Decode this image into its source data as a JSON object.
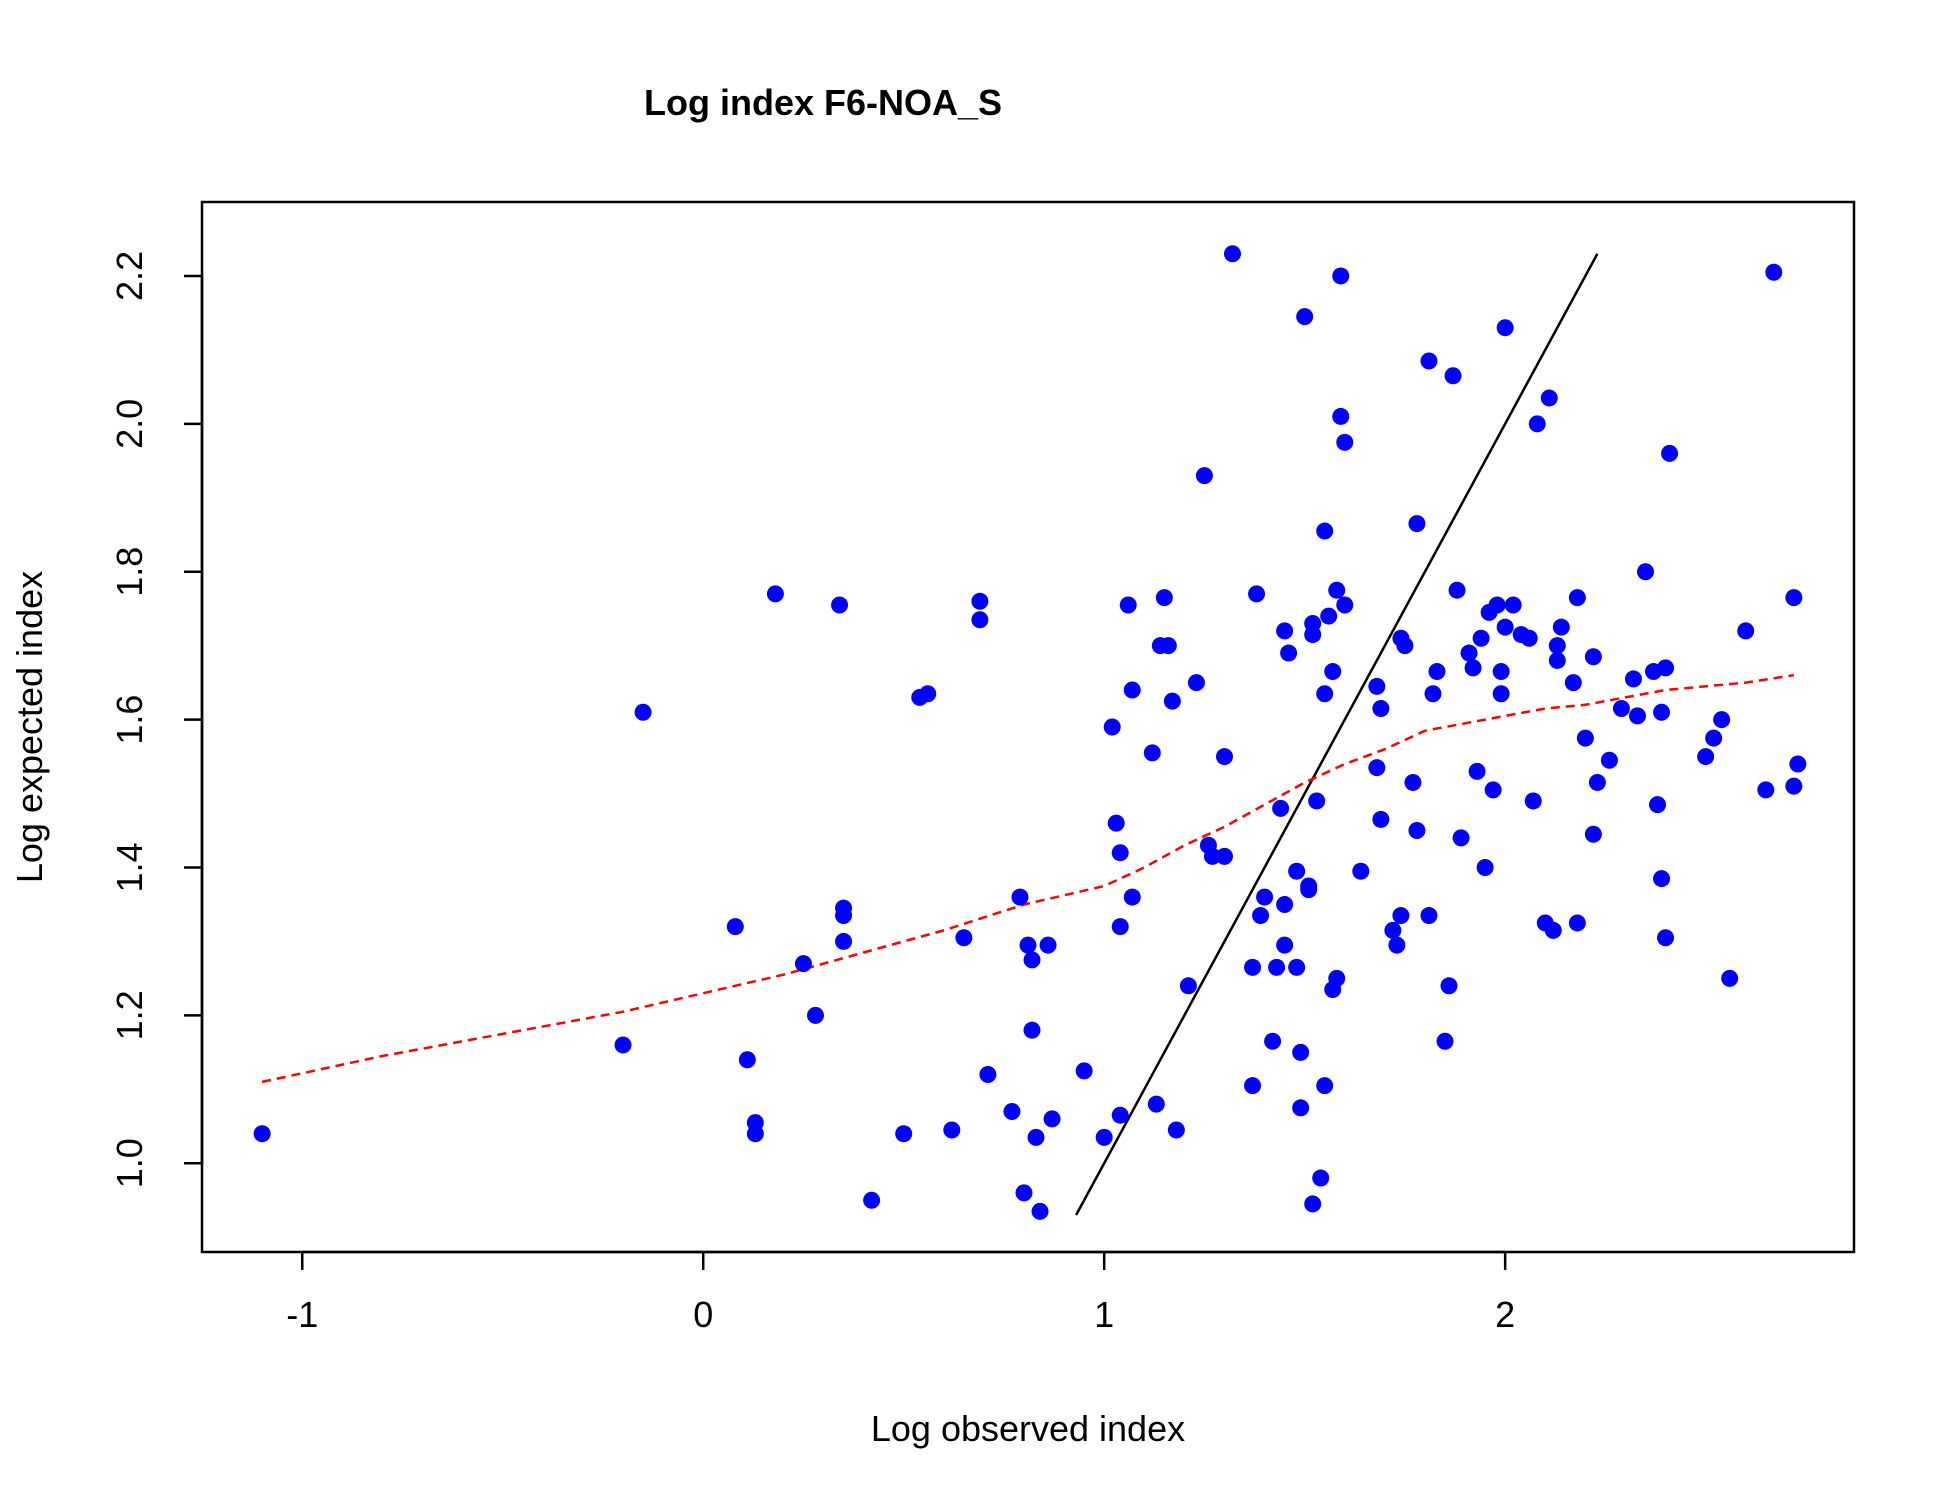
{
  "chart_data": {
    "type": "scatter",
    "title": "Log index F6-NOA_S",
    "xlabel": "Log observed index",
    "ylabel": "Log expected index",
    "xlim": [
      -1.25,
      2.87
    ],
    "ylim": [
      0.88,
      2.3
    ],
    "x_ticks": [
      -1,
      0,
      1,
      2
    ],
    "y_ticks": [
      1.0,
      1.2,
      1.4,
      1.6,
      1.8,
      2.0,
      2.2
    ],
    "x_tick_labels": [
      "-1",
      "0",
      "1",
      "2"
    ],
    "y_tick_labels": [
      "1.0",
      "1.2",
      "1.4",
      "1.6",
      "1.8",
      "2.0",
      "2.2"
    ],
    "grid": false,
    "legend": "none",
    "colors": {
      "points": "#0000ff",
      "smoother": "#ff0000",
      "identity_line": "#000000"
    },
    "points": [
      [
        -1.1,
        1.04
      ],
      [
        -0.2,
        1.16
      ],
      [
        -0.15,
        1.61
      ],
      [
        0.08,
        1.32
      ],
      [
        0.11,
        1.14
      ],
      [
        0.13,
        1.055
      ],
      [
        0.13,
        1.04
      ],
      [
        0.18,
        1.77
      ],
      [
        0.25,
        1.27
      ],
      [
        0.28,
        1.2
      ],
      [
        0.34,
        1.755
      ],
      [
        0.35,
        1.3
      ],
      [
        0.35,
        1.345
      ],
      [
        0.35,
        1.335
      ],
      [
        0.42,
        0.95
      ],
      [
        0.5,
        1.04
      ],
      [
        0.54,
        1.63
      ],
      [
        0.56,
        1.635
      ],
      [
        0.62,
        1.045
      ],
      [
        0.65,
        1.305
      ],
      [
        0.69,
        1.76
      ],
      [
        0.69,
        1.735
      ],
      [
        0.71,
        1.12
      ],
      [
        0.77,
        1.07
      ],
      [
        0.79,
        1.36
      ],
      [
        0.8,
        0.96
      ],
      [
        0.81,
        1.295
      ],
      [
        0.82,
        1.18
      ],
      [
        0.82,
        1.275
      ],
      [
        0.83,
        1.035
      ],
      [
        0.84,
        0.935
      ],
      [
        0.86,
        1.295
      ],
      [
        0.87,
        1.06
      ],
      [
        0.95,
        1.125
      ],
      [
        1.0,
        1.035
      ],
      [
        1.02,
        1.59
      ],
      [
        1.03,
        1.46
      ],
      [
        1.04,
        1.32
      ],
      [
        1.04,
        1.065
      ],
      [
        1.04,
        1.42
      ],
      [
        1.06,
        1.755
      ],
      [
        1.07,
        1.64
      ],
      [
        1.07,
        1.36
      ],
      [
        1.12,
        1.555
      ],
      [
        1.13,
        1.08
      ],
      [
        1.14,
        1.7
      ],
      [
        1.15,
        1.765
      ],
      [
        1.16,
        1.7
      ],
      [
        1.17,
        1.625
      ],
      [
        1.18,
        1.045
      ],
      [
        1.21,
        1.24
      ],
      [
        1.23,
        1.65
      ],
      [
        1.25,
        1.93
      ],
      [
        1.26,
        1.43
      ],
      [
        1.27,
        1.415
      ],
      [
        1.3,
        1.415
      ],
      [
        1.3,
        1.55
      ],
      [
        1.32,
        2.23
      ],
      [
        1.37,
        1.105
      ],
      [
        1.37,
        1.265
      ],
      [
        1.38,
        1.77
      ],
      [
        1.39,
        1.335
      ],
      [
        1.4,
        1.36
      ],
      [
        1.42,
        1.165
      ],
      [
        1.43,
        1.265
      ],
      [
        1.44,
        1.48
      ],
      [
        1.45,
        1.72
      ],
      [
        1.45,
        1.295
      ],
      [
        1.45,
        1.35
      ],
      [
        1.46,
        1.69
      ],
      [
        1.48,
        1.395
      ],
      [
        1.48,
        1.265
      ],
      [
        1.49,
        1.075
      ],
      [
        1.49,
        1.15
      ],
      [
        1.5,
        2.145
      ],
      [
        1.51,
        1.37
      ],
      [
        1.51,
        1.375
      ],
      [
        1.52,
        1.715
      ],
      [
        1.52,
        1.73
      ],
      [
        1.52,
        0.945
      ],
      [
        1.53,
        1.49
      ],
      [
        1.54,
        0.98
      ],
      [
        1.55,
        1.635
      ],
      [
        1.55,
        1.855
      ],
      [
        1.55,
        1.105
      ],
      [
        1.56,
        1.74
      ],
      [
        1.57,
        1.665
      ],
      [
        1.57,
        1.235
      ],
      [
        1.58,
        1.775
      ],
      [
        1.58,
        1.25
      ],
      [
        1.59,
        2.2
      ],
      [
        1.59,
        2.01
      ],
      [
        1.6,
        1.975
      ],
      [
        1.6,
        1.755
      ],
      [
        1.64,
        1.395
      ],
      [
        1.68,
        1.535
      ],
      [
        1.68,
        1.645
      ],
      [
        1.69,
        1.615
      ],
      [
        1.69,
        1.465
      ],
      [
        1.72,
        1.315
      ],
      [
        1.73,
        1.295
      ],
      [
        1.74,
        1.71
      ],
      [
        1.74,
        1.335
      ],
      [
        1.75,
        1.7
      ],
      [
        1.77,
        1.515
      ],
      [
        1.78,
        1.45
      ],
      [
        1.78,
        1.865
      ],
      [
        1.81,
        2.085
      ],
      [
        1.81,
        1.335
      ],
      [
        1.82,
        1.635
      ],
      [
        1.83,
        1.665
      ],
      [
        1.85,
        1.165
      ],
      [
        1.86,
        1.24
      ],
      [
        1.87,
        2.065
      ],
      [
        1.88,
        1.775
      ],
      [
        1.89,
        1.44
      ],
      [
        1.91,
        1.69
      ],
      [
        1.92,
        1.67
      ],
      [
        1.93,
        1.53
      ],
      [
        1.94,
        1.71
      ],
      [
        1.95,
        1.4
      ],
      [
        1.96,
        1.745
      ],
      [
        1.97,
        1.505
      ],
      [
        1.98,
        1.755
      ],
      [
        1.99,
        1.665
      ],
      [
        1.99,
        1.635
      ],
      [
        2.0,
        2.13
      ],
      [
        2.0,
        1.725
      ],
      [
        2.02,
        1.755
      ],
      [
        2.04,
        1.715
      ],
      [
        2.06,
        1.71
      ],
      [
        2.07,
        1.49
      ],
      [
        2.08,
        2.0
      ],
      [
        2.1,
        1.325
      ],
      [
        2.11,
        2.035
      ],
      [
        2.12,
        1.315
      ],
      [
        2.13,
        1.68
      ],
      [
        2.13,
        1.7
      ],
      [
        2.14,
        1.725
      ],
      [
        2.17,
        1.65
      ],
      [
        2.18,
        1.325
      ],
      [
        2.18,
        1.765
      ],
      [
        2.2,
        1.575
      ],
      [
        2.22,
        1.685
      ],
      [
        2.22,
        1.445
      ],
      [
        2.23,
        1.515
      ],
      [
        2.26,
        1.545
      ],
      [
        2.29,
        1.615
      ],
      [
        2.32,
        1.655
      ],
      [
        2.33,
        1.605
      ],
      [
        2.35,
        1.8
      ],
      [
        2.37,
        1.665
      ],
      [
        2.38,
        1.485
      ],
      [
        2.39,
        1.61
      ],
      [
        2.39,
        1.385
      ],
      [
        2.4,
        1.305
      ],
      [
        2.4,
        1.67
      ],
      [
        2.41,
        1.96
      ],
      [
        2.5,
        1.55
      ],
      [
        2.52,
        1.575
      ],
      [
        2.54,
        1.6
      ],
      [
        2.56,
        1.25
      ],
      [
        2.6,
        1.72
      ],
      [
        2.65,
        1.505
      ],
      [
        2.67,
        2.205
      ],
      [
        2.72,
        1.765
      ],
      [
        2.72,
        1.51
      ],
      [
        2.73,
        1.54
      ]
    ],
    "smoother": [
      [
        -1.1,
        1.11
      ],
      [
        -0.8,
        1.145
      ],
      [
        -0.5,
        1.175
      ],
      [
        -0.2,
        1.205
      ],
      [
        0.0,
        1.23
      ],
      [
        0.2,
        1.255
      ],
      [
        0.4,
        1.285
      ],
      [
        0.6,
        1.315
      ],
      [
        0.8,
        1.35
      ],
      [
        1.0,
        1.375
      ],
      [
        1.1,
        1.4
      ],
      [
        1.2,
        1.43
      ],
      [
        1.3,
        1.455
      ],
      [
        1.4,
        1.485
      ],
      [
        1.5,
        1.515
      ],
      [
        1.6,
        1.54
      ],
      [
        1.7,
        1.56
      ],
      [
        1.8,
        1.585
      ],
      [
        1.9,
        1.595
      ],
      [
        2.0,
        1.605
      ],
      [
        2.1,
        1.615
      ],
      [
        2.2,
        1.62
      ],
      [
        2.3,
        1.63
      ],
      [
        2.4,
        1.64
      ],
      [
        2.5,
        1.645
      ],
      [
        2.6,
        1.65
      ],
      [
        2.72,
        1.66
      ]
    ],
    "identity_line": [
      [
        0.93,
        0.93
      ],
      [
        2.23,
        2.23
      ]
    ]
  }
}
